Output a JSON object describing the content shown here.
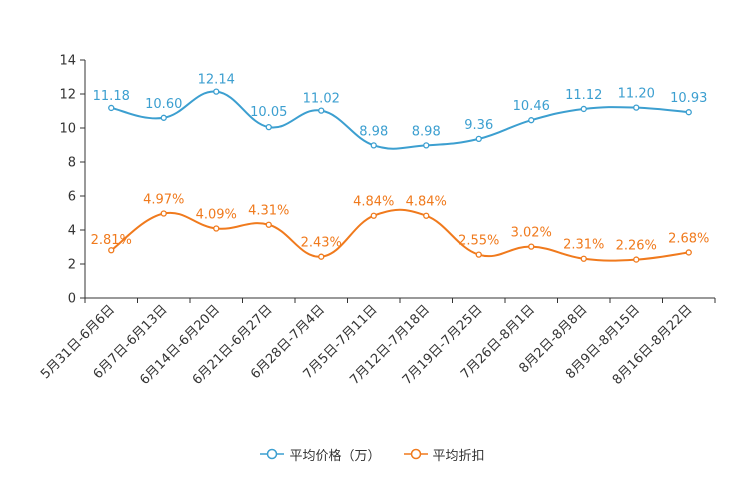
{
  "chart_data": {
    "type": "line",
    "categories": [
      "5月31日-6月6日",
      "6月7日-6月13日",
      "6月14日-6月20日",
      "6月21日-6月27日",
      "6月28日-7月4日",
      "7月5日-7月11日",
      "7月12日-7月18日",
      "7月19日-7月25日",
      "7月26日-8月1日",
      "8月2日-8月8日",
      "8月9日-8月15日",
      "8月16日-8月22日"
    ],
    "series": [
      {
        "name": "平均价格（万）",
        "color": "#3c9fd0",
        "values": [
          11.18,
          10.6,
          12.14,
          10.05,
          11.02,
          8.98,
          8.98,
          9.36,
          10.46,
          11.12,
          11.2,
          10.93
        ],
        "labels": [
          "11.18",
          "10.60",
          "12.14",
          "10.05",
          "11.02",
          "8.98",
          "8.98",
          "9.36",
          "10.46",
          "11.12",
          "11.20",
          "10.93"
        ]
      },
      {
        "name": "平均折扣",
        "color": "#f07a1d",
        "values": [
          2.81,
          4.97,
          4.09,
          4.31,
          2.43,
          4.84,
          4.84,
          2.55,
          3.02,
          2.31,
          2.26,
          2.68
        ],
        "labels": [
          "2.81%",
          "4.97%",
          "4.09%",
          "4.31%",
          "2.43%",
          "4.84%",
          "4.84%",
          "2.55%",
          "3.02%",
          "2.31%",
          "2.26%",
          "2.68%"
        ]
      }
    ],
    "ylim": [
      0,
      14
    ],
    "yticks": [
      0,
      2,
      4,
      6,
      8,
      10,
      12,
      14
    ],
    "ytick_labels": [
      "0",
      "2",
      "4",
      "6",
      "8",
      "10",
      "12",
      "14"
    ],
    "grid": false,
    "legend_position": "bottom-center",
    "title": "",
    "xlabel": "",
    "ylabel": ""
  }
}
